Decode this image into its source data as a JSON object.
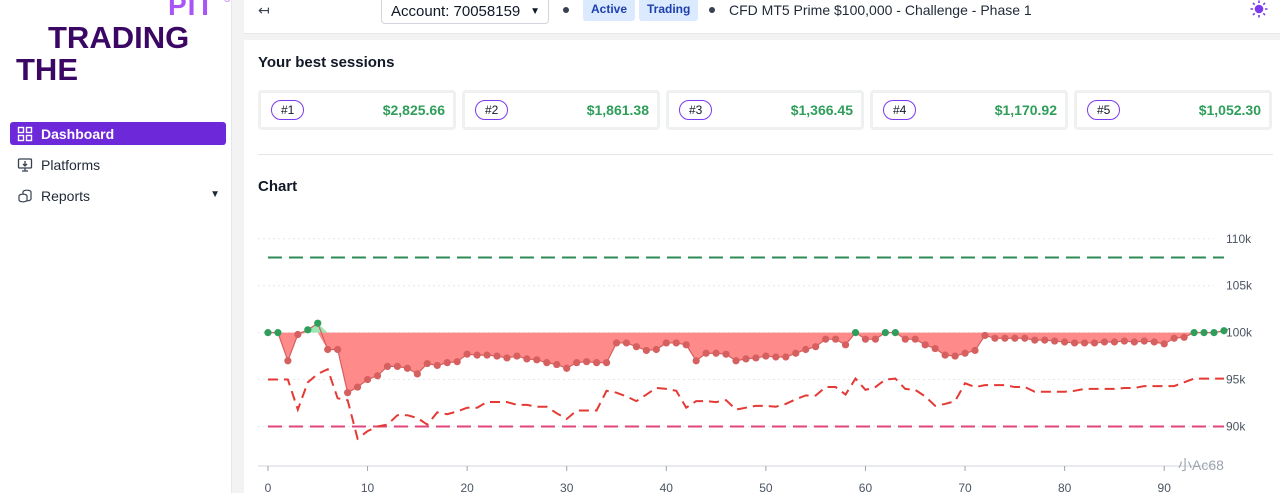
{
  "logo": {
    "line1": "PIT",
    "reg": "®",
    "line2": "TRADING",
    "line3": "THE"
  },
  "sidebar": {
    "items": [
      {
        "label": "Dashboard",
        "icon": "dashboard-icon",
        "active": true
      },
      {
        "label": "Platforms",
        "icon": "platforms-icon",
        "active": false
      },
      {
        "label": "Reports",
        "icon": "reports-icon",
        "active": false,
        "has_caret": true
      }
    ]
  },
  "topbar": {
    "back_icon": "↤",
    "account_label": "Account: 70058159",
    "badges": [
      "Active",
      "Trading"
    ],
    "account_description": "CFD MT5 Prime $100,000 - Challenge - Phase 1",
    "theme_icon": "sun-icon"
  },
  "best_sessions": {
    "title": "Your best sessions",
    "items": [
      {
        "rank": "#1",
        "amount": "$2,825.66"
      },
      {
        "rank": "#2",
        "amount": "$1,861.38"
      },
      {
        "rank": "#3",
        "amount": "$1,366.45"
      },
      {
        "rank": "#4",
        "amount": "$1,170.92"
      },
      {
        "rank": "#5",
        "amount": "$1,052.30"
      }
    ]
  },
  "chart_section": {
    "title": "Chart"
  },
  "watermark": "小Ac68",
  "colors": {
    "accent": "#6d28d9",
    "profit": "#2f9e5b",
    "loss_fill": "#ff8a8a",
    "loss_point": "#d65f5f",
    "target_line": "#2e8b57",
    "max_loss_line": "#e0457b",
    "daily_loss_line": "#e53935"
  },
  "chart_data": {
    "type": "line",
    "x_ticks": [
      0,
      10,
      20,
      30,
      40,
      50,
      60,
      70,
      80,
      90
    ],
    "y_ticks": [
      "90k",
      "95k",
      "100k",
      "105k",
      "110k"
    ],
    "ylim": [
      86000,
      112000
    ],
    "xlim": [
      -1,
      95
    ],
    "baseline": 100000,
    "target": 108000,
    "max_loss_limit": 90000,
    "balance": [
      100000,
      100000,
      97000,
      99800,
      100300,
      101000,
      98200,
      98200,
      93600,
      94200,
      95000,
      95400,
      96400,
      96400,
      96200,
      95600,
      96700,
      96500,
      96800,
      96900,
      97700,
      97600,
      97600,
      97500,
      97300,
      97500,
      97200,
      97100,
      96800,
      96600,
      96200,
      96800,
      96900,
      96800,
      96800,
      98900,
      98900,
      98500,
      98100,
      98200,
      98900,
      98900,
      98700,
      97000,
      97800,
      97800,
      97700,
      97000,
      97200,
      97300,
      97500,
      97400,
      97400,
      97800,
      98200,
      98500,
      99300,
      99300,
      98700,
      100000,
      99300,
      99300,
      100000,
      100000,
      99300,
      99300,
      98700,
      98300,
      97600,
      97500,
      97800,
      98100,
      99700,
      99400,
      99400,
      99400,
      99400,
      99200,
      99200,
      99100,
      99000,
      98900,
      98900,
      98900,
      99000,
      99000,
      99100,
      99000,
      99100,
      99000,
      98800,
      99400,
      99500,
      100000,
      100000,
      100000,
      100200
    ],
    "daily_loss_limit": [
      95000,
      95000,
      95000,
      91800,
      94700,
      95600,
      96100,
      93000,
      92800,
      88700,
      89500,
      90000,
      90200,
      91200,
      91200,
      90900,
      90200,
      91500,
      91300,
      91600,
      92000,
      92000,
      92600,
      92600,
      92600,
      92300,
      92300,
      92100,
      92100,
      91400,
      90800,
      91700,
      91700,
      91700,
      93800,
      93600,
      93200,
      92700,
      93400,
      94100,
      94000,
      93800,
      92000,
      92700,
      92700,
      92600,
      92800,
      91800,
      92000,
      92200,
      92200,
      92100,
      92400,
      92900,
      93300,
      93300,
      94200,
      94200,
      93400,
      95100,
      93900,
      94200,
      95000,
      95100,
      94000,
      93900,
      93200,
      92200,
      92400,
      92700,
      94600,
      94200,
      94400,
      94400,
      94400,
      94200,
      94200,
      93700,
      93700,
      93700,
      93700,
      93800,
      94000,
      94000,
      94000,
      94000,
      94100,
      94100,
      94300,
      94300,
      94300,
      94300,
      94700,
      95100,
      95100,
      95100,
      95100
    ]
  }
}
